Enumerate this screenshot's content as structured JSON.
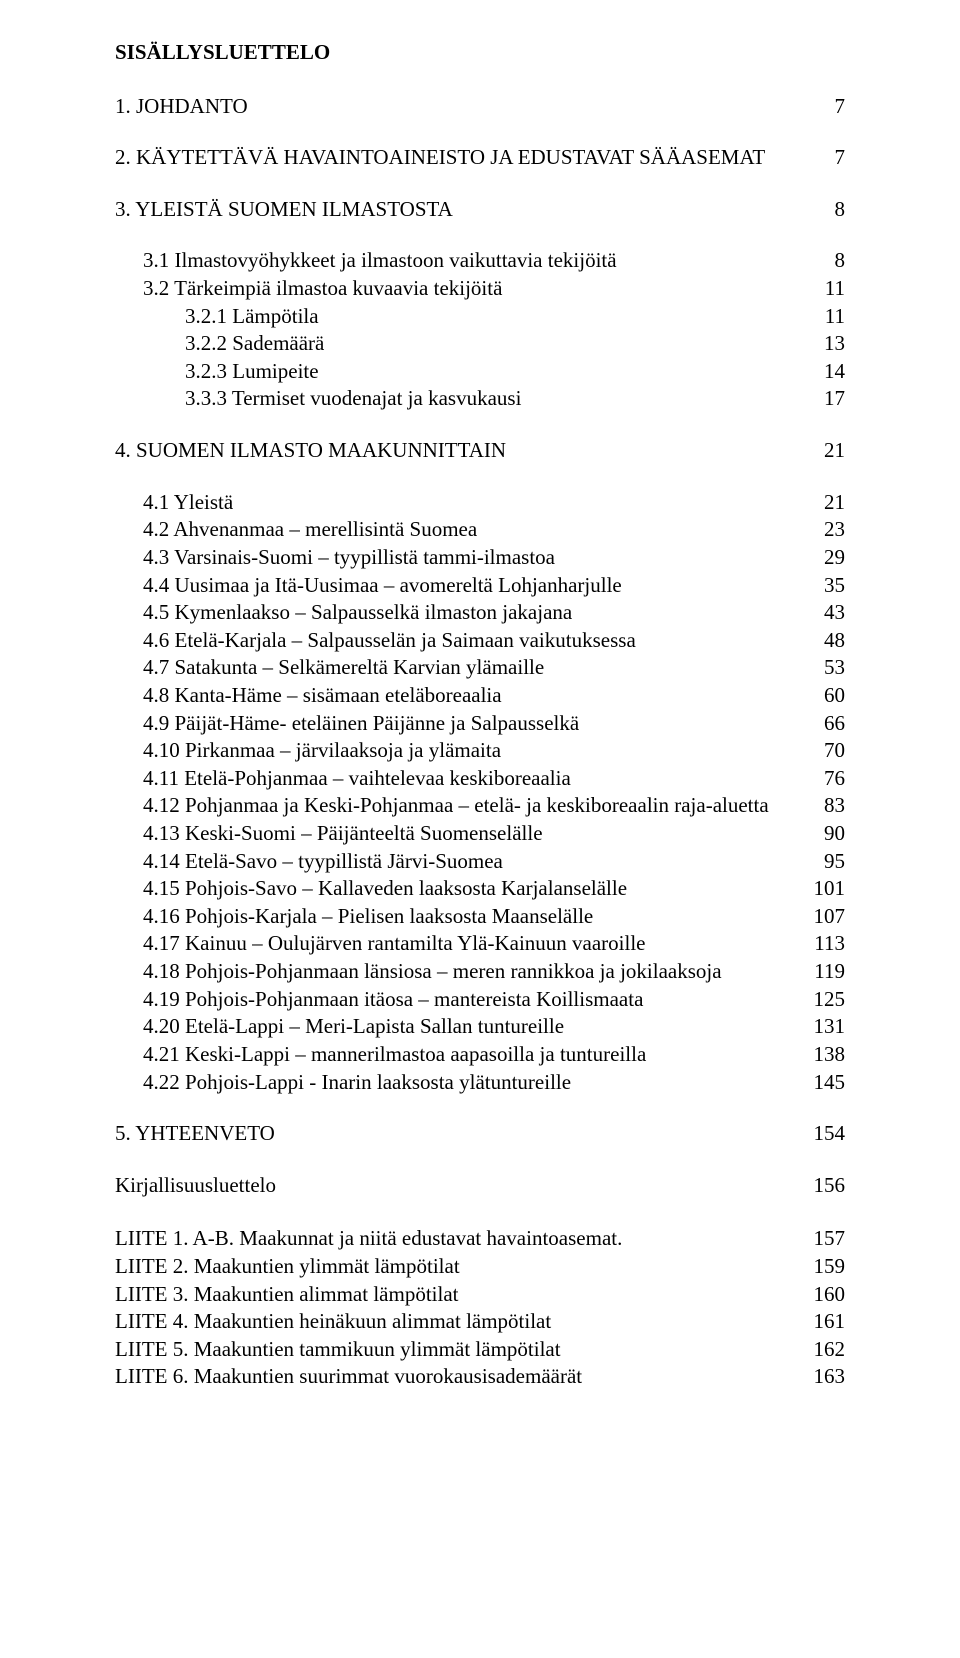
{
  "title": "SISÄLLYSLUETTELO",
  "s1": {
    "label": "1.  JOHDANTO",
    "page": "7"
  },
  "s2": {
    "label": "2.  KÄYTETTÄVÄ HAVAINTOAINEISTO JA EDUSTAVAT SÄÄASEMAT",
    "page": "7"
  },
  "s3": {
    "label": "3.  YLEISTÄ SUOMEN ILMASTOSTA",
    "page": "8"
  },
  "s3_1": {
    "label": "3.1 Ilmastovyöhykkeet ja ilmastoon vaikuttavia tekijöitä",
    "page": "8"
  },
  "s3_2": {
    "label": "3.2 Tärkeimpiä ilmastoa kuvaavia tekijöitä",
    "page": "11"
  },
  "s3_2_1": {
    "label": "3.2.1 Lämpötila",
    "page": "11"
  },
  "s3_2_2": {
    "label": "3.2.2 Sademäärä",
    "page": "13"
  },
  "s3_2_3": {
    "label": "3.2.3 Lumipeite",
    "page": "14"
  },
  "s3_3_3": {
    "label": "3.3.3 Termiset vuodenajat ja kasvukausi",
    "page": "17"
  },
  "s4": {
    "label": "4.  SUOMEN ILMASTO MAAKUNNITTAIN",
    "page": "21"
  },
  "s4_1": {
    "label": "4.1  Yleistä",
    "page": "21"
  },
  "s4_2": {
    "label": "4.2  Ahvenanmaa – merellisintä Suomea",
    "page": "23"
  },
  "s4_3": {
    "label": "4.3  Varsinais-Suomi – tyypillistä tammi-ilmastoa",
    "page": "29"
  },
  "s4_4": {
    "label": "4.4  Uusimaa ja Itä-Uusimaa – avomereltä Lohjanharjulle",
    "page": "35"
  },
  "s4_5": {
    "label": "4.5  Kymenlaakso – Salpausselkä ilmaston jakajana",
    "page": "43"
  },
  "s4_6": {
    "label": "4.6  Etelä-Karjala – Salpausselän ja Saimaan vaikutuksessa",
    "page": "48"
  },
  "s4_7": {
    "label": "4.7  Satakunta – Selkämereltä Karvian ylämaille",
    "page": "53"
  },
  "s4_8": {
    "label": "4.8  Kanta-Häme – sisämaan eteläboreaalia",
    "page": "60"
  },
  "s4_9": {
    "label": "4.9  Päijät-Häme- eteläinen Päijänne ja Salpausselkä",
    "page": "66"
  },
  "s4_10": {
    "label": "4.10 Pirkanmaa – järvilaaksoja ja ylämaita",
    "page": "70"
  },
  "s4_11": {
    "label": "4.11 Etelä-Pohjanmaa – vaihtelevaa keskiboreaalia",
    "page": "76"
  },
  "s4_12": {
    "label": "4.12 Pohjanmaa ja Keski-Pohjanmaa – etelä- ja keskiboreaalin raja-aluetta",
    "page": "83"
  },
  "s4_13": {
    "label": "4.13 Keski-Suomi – Päijänteeltä Suomenselälle",
    "page": "90"
  },
  "s4_14": {
    "label": "4.14 Etelä-Savo – tyypillistä Järvi-Suomea",
    "page": "95"
  },
  "s4_15": {
    "label": "4.15 Pohjois-Savo – Kallaveden laaksosta Karjalanselälle",
    "page": "101"
  },
  "s4_16": {
    "label": "4.16 Pohjois-Karjala – Pielisen laaksosta Maanselälle",
    "page": "107"
  },
  "s4_17": {
    "label": "4.17 Kainuu – Oulujärven rantamilta Ylä-Kainuun vaaroille",
    "page": "113"
  },
  "s4_18": {
    "label": "4.18 Pohjois-Pohjanmaan länsiosa – meren rannikkoa ja jokilaaksoja",
    "page": "119"
  },
  "s4_19": {
    "label": "4.19 Pohjois-Pohjanmaan itäosa – mantereista Koillismaata",
    "page": "125"
  },
  "s4_20": {
    "label": "4.20 Etelä-Lappi – Meri-Lapista Sallan tuntureille",
    "page": "131"
  },
  "s4_21": {
    "label": "4.21 Keski-Lappi – mannerilmastoa aapasoilla ja tuntureilla",
    "page": "138"
  },
  "s4_22": {
    "label": "4.22 Pohjois-Lappi - Inarin laaksosta ylätuntureille",
    "page": "145"
  },
  "s5": {
    "label": "5. YHTEENVETO",
    "page": "154"
  },
  "bib": {
    "label": "Kirjallisuusluettelo",
    "page": "156"
  },
  "l1": {
    "label": "LIITE 1. A-B. Maakunnat ja niitä edustavat havaintoasemat.",
    "page": "157"
  },
  "l2": {
    "label": "LIITE 2. Maakuntien ylimmät lämpötilat",
    "page": "159"
  },
  "l3": {
    "label": "LIITE 3. Maakuntien alimmat lämpötilat",
    "page": "160"
  },
  "l4": {
    "label": "LIITE 4. Maakuntien heinäkuun alimmat lämpötilat",
    "page": "161"
  },
  "l5": {
    "label": "LIITE 5. Maakuntien tammikuun ylimmät lämpötilat",
    "page": "162"
  },
  "l6": {
    "label": "LIITE 6. Maakuntien suurimmat vuorokausisademäärät",
    "page": "163"
  }
}
